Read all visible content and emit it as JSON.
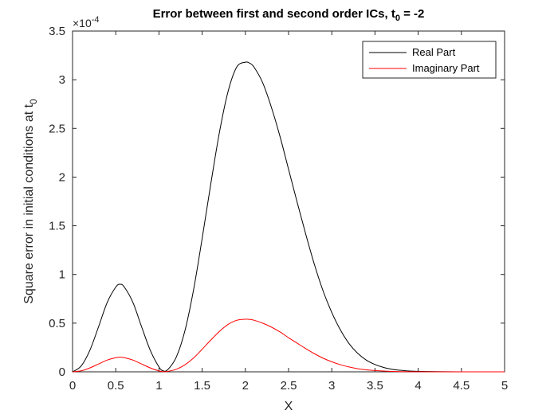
{
  "chart_data": {
    "type": "line",
    "title_main": "Error between first and second order ICs, t",
    "title_sub": "0",
    "title_tail": " = -2",
    "xlabel": "X",
    "ylabel_main": "Square error in initial conditions at t",
    "ylabel_sub": "0",
    "y_exponent_prefix": "×10",
    "y_exponent_power": "-4",
    "xlim": [
      0,
      5
    ],
    "ylim": [
      0,
      3.5
    ],
    "y_scale_note": "values in units of 1e-4",
    "xticks": [
      "0",
      "0.5",
      "1",
      "1.5",
      "2",
      "2.5",
      "3",
      "3.5",
      "4",
      "4.5",
      "5"
    ],
    "yticks": [
      "0",
      "0.5",
      "1",
      "1.5",
      "2",
      "2.5",
      "3",
      "3.5"
    ],
    "legend_position": "top-right",
    "series": [
      {
        "name": "Real Part",
        "color": "#000000",
        "x": [
          0,
          0.1,
          0.2,
          0.3,
          0.4,
          0.5,
          0.55,
          0.6,
          0.7,
          0.8,
          0.9,
          1.0,
          1.05,
          1.1,
          1.2,
          1.3,
          1.4,
          1.5,
          1.6,
          1.7,
          1.8,
          1.9,
          2.0,
          2.05,
          2.1,
          2.2,
          2.3,
          2.4,
          2.5,
          2.6,
          2.7,
          2.8,
          2.9,
          3.0,
          3.1,
          3.2,
          3.3,
          3.4,
          3.5,
          3.6,
          3.7,
          3.8,
          3.9,
          4.0,
          4.1,
          4.2,
          4.5,
          5.0
        ],
        "y": [
          0,
          0.06,
          0.22,
          0.46,
          0.71,
          0.87,
          0.9,
          0.87,
          0.71,
          0.46,
          0.22,
          0.05,
          0.01,
          0.02,
          0.15,
          0.42,
          0.84,
          1.37,
          1.93,
          2.46,
          2.88,
          3.13,
          3.18,
          3.17,
          3.13,
          2.97,
          2.72,
          2.42,
          2.08,
          1.74,
          1.41,
          1.1,
          0.83,
          0.61,
          0.43,
          0.29,
          0.19,
          0.12,
          0.075,
          0.045,
          0.026,
          0.015,
          0.008,
          0.005,
          0.003,
          0.002,
          0.0005,
          0
        ]
      },
      {
        "name": "Imaginary Part",
        "color": "#ff0000",
        "x": [
          0,
          0.1,
          0.2,
          0.3,
          0.4,
          0.5,
          0.55,
          0.6,
          0.7,
          0.8,
          0.9,
          1.0,
          1.05,
          1.1,
          1.2,
          1.3,
          1.4,
          1.5,
          1.6,
          1.7,
          1.8,
          1.9,
          2.0,
          2.05,
          2.1,
          2.2,
          2.3,
          2.4,
          2.5,
          2.6,
          2.7,
          2.8,
          2.9,
          3.0,
          3.1,
          3.2,
          3.3,
          3.4,
          3.5,
          3.6,
          3.7,
          3.8,
          3.9,
          4.0,
          4.1,
          4.2,
          4.5,
          5.0
        ],
        "y": [
          0,
          0.01,
          0.04,
          0.08,
          0.12,
          0.145,
          0.15,
          0.145,
          0.12,
          0.08,
          0.04,
          0.009,
          0.002,
          0.004,
          0.026,
          0.072,
          0.142,
          0.232,
          0.326,
          0.415,
          0.487,
          0.529,
          0.54,
          0.538,
          0.53,
          0.5,
          0.46,
          0.41,
          0.35,
          0.294,
          0.238,
          0.186,
          0.14,
          0.103,
          0.073,
          0.05,
          0.032,
          0.02,
          0.013,
          0.008,
          0.0045,
          0.0025,
          0.0014,
          0.0008,
          0.0005,
          0.0003,
          0.0001,
          0
        ]
      }
    ]
  }
}
